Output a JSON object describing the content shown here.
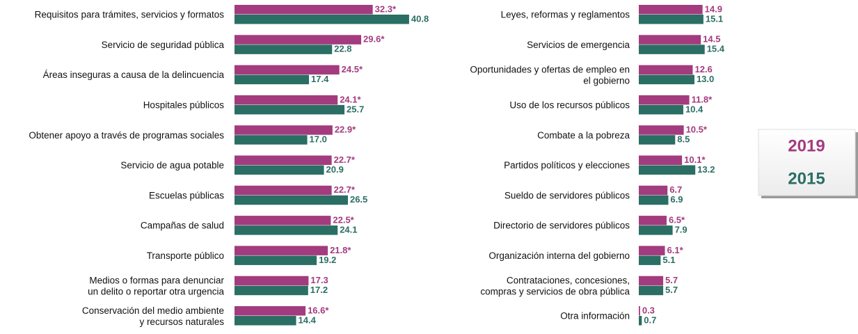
{
  "chart_data": [
    {
      "type": "bar",
      "orientation": "horizontal",
      "categories": [
        "Requisitos para trámites, servicios y formatos",
        "Servicio de seguridad pública",
        "Áreas inseguras a causa de la delincuencia",
        "Hospitales públicos",
        "Obtener apoyo a través de programas sociales",
        "Servicio de agua potable",
        "Escuelas públicas",
        "Campañas de salud",
        "Transporte público",
        "Medios o formas para denunciar\nun delito o reportar otra urgencia",
        "Conservación del medio ambiente\ny recursos naturales"
      ],
      "series": [
        {
          "name": "2019",
          "color": "#a33b7f",
          "values": [
            32.3,
            29.6,
            24.5,
            24.1,
            22.9,
            22.7,
            22.7,
            22.5,
            21.8,
            17.3,
            16.6
          ],
          "value_labels": [
            "32.3*",
            "29.6*",
            "24.5*",
            "24.1*",
            "22.9*",
            "22.7*",
            "22.7*",
            "22.5*",
            "21.8*",
            "17.3",
            "16.6*"
          ]
        },
        {
          "name": "2015",
          "color": "#2a6e64",
          "values": [
            40.8,
            22.8,
            17.4,
            25.7,
            17.0,
            20.9,
            26.5,
            24.1,
            19.2,
            17.2,
            14.4
          ],
          "value_labels": [
            "40.8",
            "22.8",
            "17.4",
            "25.7",
            "17.0",
            "20.9",
            "26.5",
            "24.1",
            "19.2",
            "17.2",
            "14.4"
          ]
        }
      ]
    },
    {
      "type": "bar",
      "orientation": "horizontal",
      "categories": [
        "Leyes, reformas y reglamentos",
        "Servicios de emergencia",
        "Oportunidades y ofertas de empleo en\nel gobierno",
        "Uso de los recursos públicos",
        "Combate a la pobreza",
        "Partidos políticos y elecciones",
        "Sueldo de servidores públicos",
        "Directorio de servidores públicos",
        "Organización interna del gobierno",
        "Contrataciones, concesiones,\ncompras y servicios de obra pública",
        "Otra información"
      ],
      "series": [
        {
          "name": "2019",
          "color": "#a33b7f",
          "values": [
            14.9,
            14.5,
            12.6,
            11.8,
            10.5,
            10.1,
            6.7,
            6.5,
            6.1,
            5.7,
            0.3
          ],
          "value_labels": [
            "14.9",
            "14.5",
            "12.6",
            "11.8*",
            "10.5*",
            "10.1*",
            "6.7",
            "6.5*",
            "6.1*",
            "5.7",
            "0.3"
          ]
        },
        {
          "name": "2015",
          "color": "#2a6e64",
          "values": [
            15.1,
            15.4,
            13.0,
            10.4,
            8.5,
            13.2,
            6.9,
            7.9,
            5.1,
            5.7,
            0.7
          ],
          "value_labels": [
            "15.1",
            "15.4",
            "13.0",
            "10.4",
            "8.5",
            "13.2",
            "6.9",
            "7.9",
            "5.1",
            "5.7",
            "0.7"
          ]
        }
      ]
    }
  ]
}
